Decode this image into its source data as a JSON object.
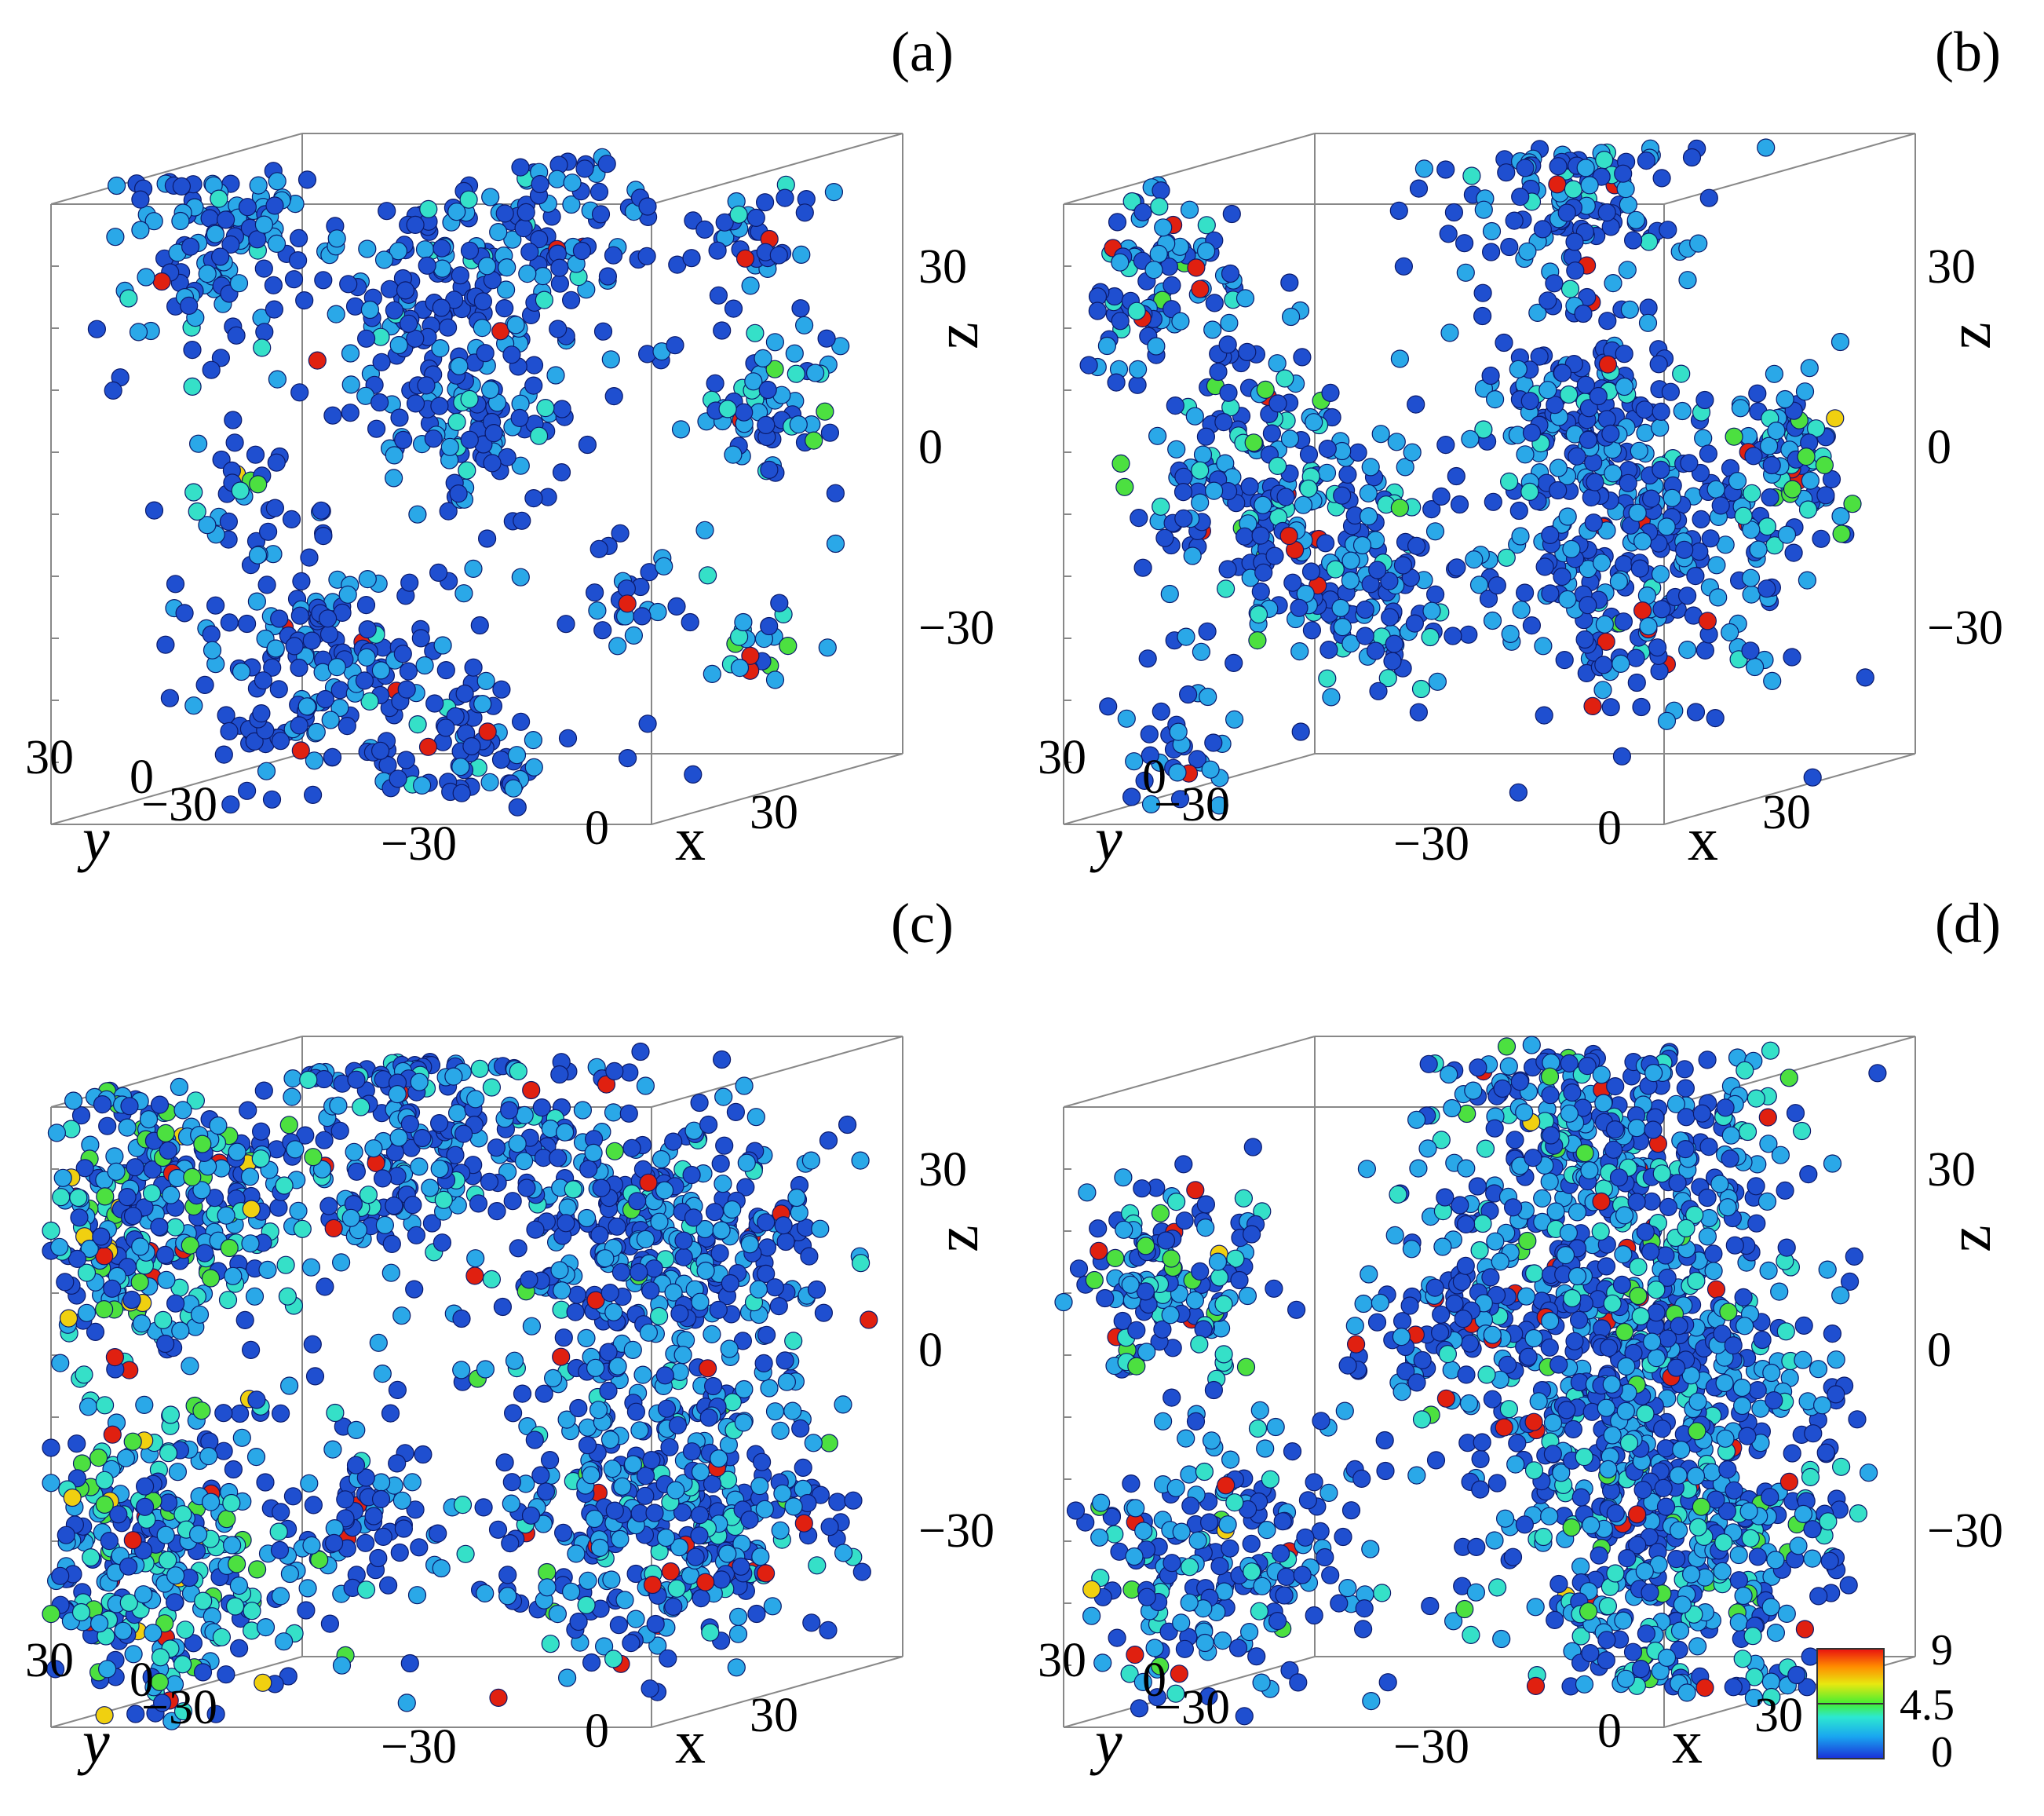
{
  "chart_data": [
    {
      "type": "scatter",
      "panel_label": "(a)",
      "xlabel": "x",
      "ylabel": "y",
      "zlabel": "z",
      "x_ticks": [
        "−30",
        "0",
        "30"
      ],
      "y_ticks": [
        "30",
        "0",
        "−30"
      ],
      "z_ticks": [
        "30",
        "0",
        "−30"
      ],
      "xlim": [
        -50,
        50
      ],
      "ylim": [
        -50,
        50
      ],
      "zlim": [
        -50,
        50
      ],
      "grid": false,
      "clusters": [
        {
          "x": -35,
          "y": 20,
          "z": 40,
          "r": 14,
          "n": 120,
          "mean_value": 1.2
        },
        {
          "x": -5,
          "y": 10,
          "z": 30,
          "r": 14,
          "n": 110,
          "mean_value": 1.2
        },
        {
          "x": 10,
          "y": -5,
          "z": 40,
          "r": 14,
          "n": 90,
          "mean_value": 1.3
        },
        {
          "x": 40,
          "y": -15,
          "z": 35,
          "r": 9,
          "n": 40,
          "mean_value": 1.4
        },
        {
          "x": 40,
          "y": -20,
          "z": 10,
          "r": 9,
          "n": 60,
          "mean_value": 1.8
        },
        {
          "x": 0,
          "y": 0,
          "z": 10,
          "r": 14,
          "n": 100,
          "mean_value": 1.2
        },
        {
          "x": -30,
          "y": 20,
          "z": 0,
          "r": 8,
          "n": 25,
          "mean_value": 2.0
        },
        {
          "x": -20,
          "y": 10,
          "z": -30,
          "r": 18,
          "n": 180,
          "mean_value": 1.0
        },
        {
          "x": 20,
          "y": -10,
          "z": -20,
          "r": 7,
          "n": 25,
          "mean_value": 1.2
        },
        {
          "x": 35,
          "y": -25,
          "z": -30,
          "r": 6,
          "n": 20,
          "mean_value": 2.5
        },
        {
          "x": 0,
          "y": 0,
          "z": -45,
          "r": 10,
          "n": 50,
          "mean_value": 1.0
        }
      ]
    },
    {
      "type": "scatter",
      "panel_label": "(b)",
      "xlabel": "x",
      "ylabel": "y",
      "zlabel": "z",
      "x_ticks": [
        "−30",
        "0",
        "30"
      ],
      "y_ticks": [
        "30",
        "0",
        "−30"
      ],
      "z_ticks": [
        "30",
        "0",
        "−30"
      ],
      "xlim": [
        -50,
        50
      ],
      "ylim": [
        -50,
        50
      ],
      "zlim": [
        -50,
        50
      ],
      "grid": false,
      "clusters": [
        {
          "x": -40,
          "y": 30,
          "z": 35,
          "r": 12,
          "n": 90,
          "mean_value": 1.8
        },
        {
          "x": -30,
          "y": 20,
          "z": 0,
          "r": 18,
          "n": 220,
          "mean_value": 1.8
        },
        {
          "x": -15,
          "y": 10,
          "z": -20,
          "r": 12,
          "n": 90,
          "mean_value": 1.4
        },
        {
          "x": 10,
          "y": -10,
          "z": 45,
          "r": 14,
          "n": 120,
          "mean_value": 1.3
        },
        {
          "x": 10,
          "y": -10,
          "z": 10,
          "r": 14,
          "n": 140,
          "mean_value": 1.2
        },
        {
          "x": 20,
          "y": -10,
          "z": -15,
          "r": 20,
          "n": 240,
          "mean_value": 1.3
        },
        {
          "x": 40,
          "y": -20,
          "z": 0,
          "r": 12,
          "n": 90,
          "mean_value": 2.0
        },
        {
          "x": -40,
          "y": 30,
          "z": -40,
          "r": 8,
          "n": 30,
          "mean_value": 1.5
        }
      ]
    },
    {
      "type": "scatter",
      "panel_label": "(c)",
      "xlabel": "x",
      "ylabel": "y",
      "zlabel": "z",
      "x_ticks": [
        "−30",
        "0",
        "30"
      ],
      "y_ticks": [
        "30",
        "0",
        "−30"
      ],
      "z_ticks": [
        "30",
        "0",
        "−30"
      ],
      "xlim": [
        -50,
        50
      ],
      "ylim": [
        -50,
        50
      ],
      "zlim": [
        -50,
        50
      ],
      "grid": false,
      "clusters": [
        {
          "x": -40,
          "y": 30,
          "z": 30,
          "r": 20,
          "n": 320,
          "mean_value": 2.6
        },
        {
          "x": -40,
          "y": 30,
          "z": -25,
          "r": 20,
          "n": 320,
          "mean_value": 2.6
        },
        {
          "x": -10,
          "y": 0,
          "z": 40,
          "r": 18,
          "n": 220,
          "mean_value": 1.5
        },
        {
          "x": 25,
          "y": -15,
          "z": 20,
          "r": 22,
          "n": 380,
          "mean_value": 1.4
        },
        {
          "x": 25,
          "y": -15,
          "z": -25,
          "r": 22,
          "n": 380,
          "mean_value": 1.6
        },
        {
          "x": -15,
          "y": 10,
          "z": -20,
          "r": 10,
          "n": 60,
          "mean_value": 1.0
        }
      ]
    },
    {
      "type": "scatter",
      "panel_label": "(d)",
      "xlabel": "x",
      "ylabel": "y",
      "zlabel": "z",
      "x_ticks": [
        "−30",
        "0",
        "30"
      ],
      "y_ticks": [
        "30",
        "0",
        "−30"
      ],
      "z_ticks": [
        "30",
        "0",
        "−30"
      ],
      "xlim": [
        -50,
        50
      ],
      "ylim": [
        -50,
        50
      ],
      "zlim": [
        -50,
        50
      ],
      "grid": false,
      "clusters": [
        {
          "x": -40,
          "y": 30,
          "z": 20,
          "r": 14,
          "n": 140,
          "mean_value": 2.2
        },
        {
          "x": -35,
          "y": 25,
          "z": -25,
          "r": 18,
          "n": 200,
          "mean_value": 1.8
        },
        {
          "x": 15,
          "y": -10,
          "z": 35,
          "r": 22,
          "n": 380,
          "mean_value": 1.8
        },
        {
          "x": 20,
          "y": -10,
          "z": 0,
          "r": 24,
          "n": 450,
          "mean_value": 1.6
        },
        {
          "x": 25,
          "y": -15,
          "z": -30,
          "r": 22,
          "n": 380,
          "mean_value": 2.0
        },
        {
          "x": -5,
          "y": 5,
          "z": 10,
          "r": 10,
          "n": 60,
          "mean_value": 1.0
        }
      ]
    }
  ],
  "colorbar": {
    "labels": [
      "9",
      "4.5",
      "0"
    ],
    "range": [
      0,
      9
    ],
    "colors": [
      "#1a2fd8",
      "#19a6f0",
      "#2de8d0",
      "#44ee33",
      "#e8e810",
      "#ff8a00",
      "#e81010"
    ]
  },
  "sphere_colors": {
    "low": "#1f4fd0",
    "mid_low": "#2aa8e8",
    "mid": "#35e0c8",
    "mid_high": "#4ce040",
    "high": "#f0d010",
    "very_high": "#e02010"
  },
  "box_line_color": "#888888"
}
